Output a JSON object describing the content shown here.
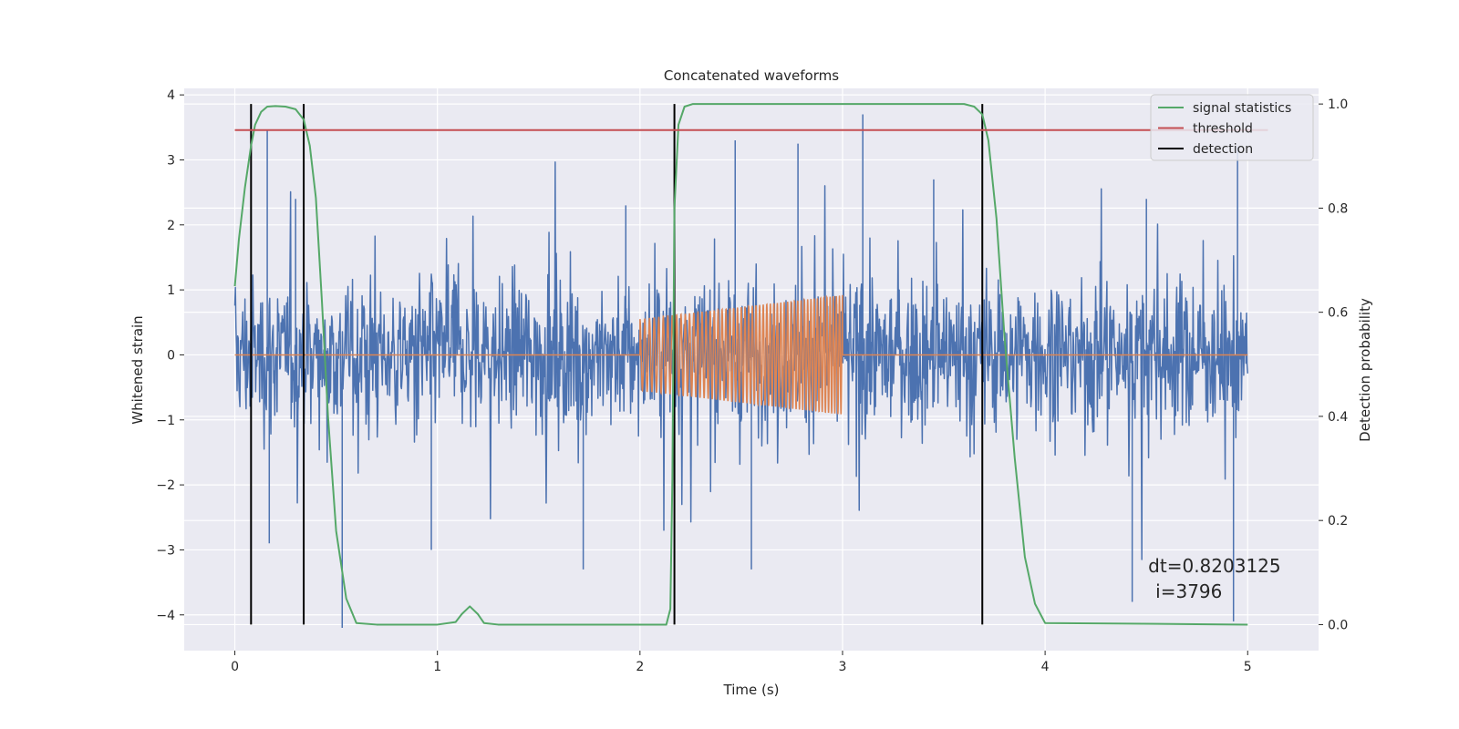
{
  "chart_data": {
    "type": "line",
    "title": "Concatenated waveforms",
    "xlabel": "Time (s)",
    "ylabel": "Whitened strain",
    "y2label": "Detection probability",
    "xlim": [
      -0.25,
      5.35
    ],
    "ylim": [
      -4.55,
      4.1
    ],
    "y2lim": [
      -0.05,
      1.03
    ],
    "xticks": [
      0,
      1,
      2,
      3,
      4,
      5
    ],
    "xtick_labels": [
      "0",
      "1",
      "2",
      "3",
      "4",
      "5"
    ],
    "yticks": [
      -4,
      -3,
      -2,
      -1,
      0,
      1,
      2,
      3,
      4
    ],
    "ytick_labels": [
      "−4",
      "−3",
      "−2",
      "−1",
      "0",
      "1",
      "2",
      "3",
      "4"
    ],
    "y2ticks": [
      0.0,
      0.2,
      0.4,
      0.6,
      0.8,
      1.0
    ],
    "y2tick_labels": [
      "0.0",
      "0.2",
      "0.4",
      "0.6",
      "0.8",
      "1.0"
    ],
    "grid": true,
    "legend_position": "top-right",
    "series": [
      {
        "name": "",
        "kind": "noise",
        "axis": "left",
        "color": "#4c72b0",
        "x_range": [
          0,
          5
        ],
        "typical_range": [
          -1.3,
          1.3
        ],
        "peaks": [
          {
            "x": 0.16,
            "y": 3.45
          },
          {
            "x": 0.08,
            "y": 2.3
          },
          {
            "x": 0.3,
            "y": 2.4
          },
          {
            "x": 0.53,
            "y": -4.2
          },
          {
            "x": 0.17,
            "y": -2.9
          },
          {
            "x": 0.97,
            "y": -3.0
          },
          {
            "x": 1.93,
            "y": 2.3
          },
          {
            "x": 1.72,
            "y": -3.3
          },
          {
            "x": 2.47,
            "y": 3.3
          },
          {
            "x": 2.55,
            "y": -3.3
          },
          {
            "x": 2.78,
            "y": 3.25
          },
          {
            "x": 3.1,
            "y": 3.7
          },
          {
            "x": 3.45,
            "y": 2.7
          },
          {
            "x": 4.43,
            "y": -3.8
          },
          {
            "x": 4.5,
            "y": 2.4
          },
          {
            "x": 4.93,
            "y": -4.1
          },
          {
            "x": 4.95,
            "y": 3.2
          }
        ]
      },
      {
        "name": "",
        "kind": "chirp",
        "axis": "left",
        "color": "#dd8452",
        "baseline": 0,
        "chirp_start": 2.0,
        "chirp_end": 3.0,
        "amplitude_start": 0.55,
        "amplitude_end": 0.92
      },
      {
        "name": "signal statistics",
        "axis": "right",
        "color": "#55a868",
        "x": [
          0.0,
          0.02,
          0.05,
          0.08,
          0.1,
          0.13,
          0.16,
          0.2,
          0.25,
          0.3,
          0.34,
          0.37,
          0.4,
          0.43,
          0.46,
          0.5,
          0.55,
          0.6,
          0.7,
          1.0,
          1.09,
          1.12,
          1.16,
          1.2,
          1.23,
          1.3,
          2.13,
          2.15,
          2.16,
          2.17,
          2.19,
          2.22,
          2.26,
          2.3,
          3.6,
          3.65,
          3.69,
          3.72,
          3.76,
          3.8,
          3.85,
          3.9,
          3.95,
          4.0,
          5.0
        ],
        "y": [
          0.65,
          0.74,
          0.84,
          0.92,
          0.96,
          0.985,
          0.995,
          0.996,
          0.995,
          0.99,
          0.97,
          0.92,
          0.82,
          0.62,
          0.4,
          0.18,
          0.05,
          0.003,
          0.0,
          0.0,
          0.005,
          0.02,
          0.035,
          0.02,
          0.003,
          0.0,
          0.0,
          0.03,
          0.28,
          0.8,
          0.96,
          0.995,
          1.0,
          1.0,
          1.0,
          0.995,
          0.98,
          0.93,
          0.78,
          0.55,
          0.32,
          0.13,
          0.04,
          0.003,
          0.0
        ]
      },
      {
        "name": "threshold",
        "axis": "right",
        "color": "#c44e52",
        "x": [
          0.0,
          5.1
        ],
        "y": [
          0.95,
          0.95
        ]
      }
    ],
    "detections": {
      "name": "detection",
      "color": "#000000",
      "x": [
        0.08,
        0.34,
        2.17,
        3.69
      ],
      "y2_range": [
        0.0,
        1.0
      ]
    },
    "annotation": {
      "line1": "dt=0.8203125",
      "line2": "i=3796",
      "x": 4.5,
      "y": -3.3
    }
  }
}
